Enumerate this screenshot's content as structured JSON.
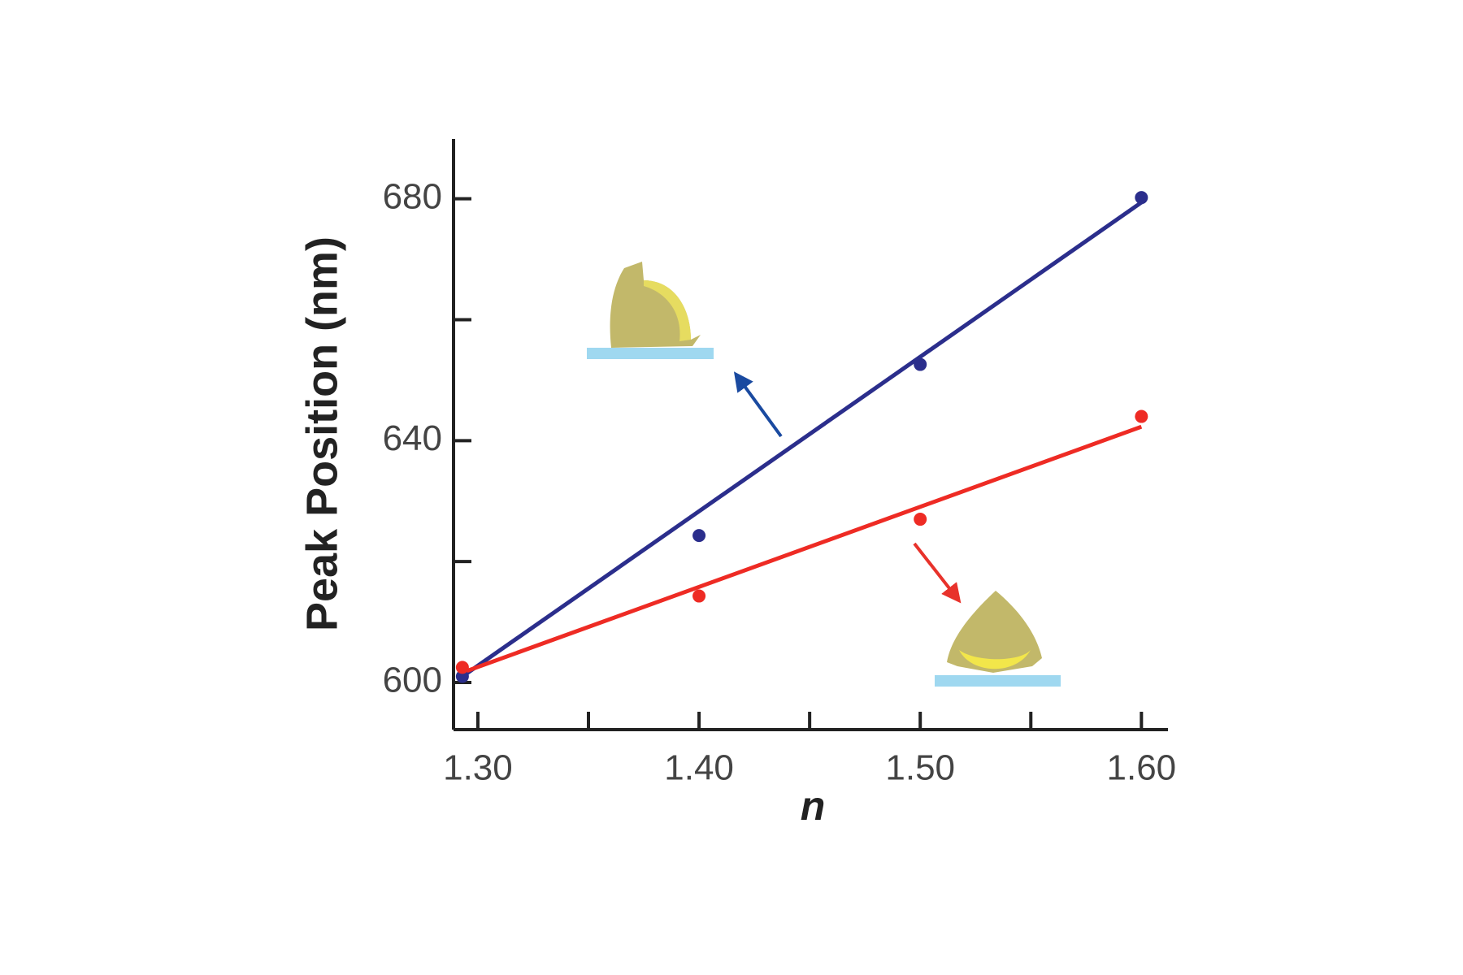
{
  "chart_data": {
    "type": "scatter",
    "xlabel": "n",
    "ylabel": "Peak Position (nm)",
    "xlim": [
      1.289,
      1.612
    ],
    "ylim": [
      592.2,
      689.9
    ],
    "xticks": [
      {
        "value": 1.3,
        "label": "1.30"
      },
      {
        "value": 1.4,
        "label": "1.40"
      },
      {
        "value": 1.5,
        "label": "1.50"
      },
      {
        "value": 1.6,
        "label": "1.60"
      }
    ],
    "xminorticks": [
      1.35,
      1.45,
      1.55
    ],
    "yticks": [
      600,
      640,
      680
    ],
    "yminorticks": [
      620,
      660
    ],
    "series": [
      {
        "color": "#2b2e8c",
        "x": [
          1.293,
          1.4,
          1.5,
          1.6
        ],
        "values": [
          601,
          624.3,
          652.6,
          680.2
        ],
        "fit": {
          "x": [
            1.295,
            1.6
          ],
          "values": [
            601.5,
            679.4
          ]
        }
      },
      {
        "color": "#ee2b24",
        "x": [
          1.293,
          1.4,
          1.5,
          1.6
        ],
        "values": [
          602.5,
          614.3,
          627,
          644
        ],
        "fit": {
          "x": [
            1.295,
            1.6
          ],
          "values": [
            601.9,
            642.3
          ]
        }
      }
    ]
  }
}
